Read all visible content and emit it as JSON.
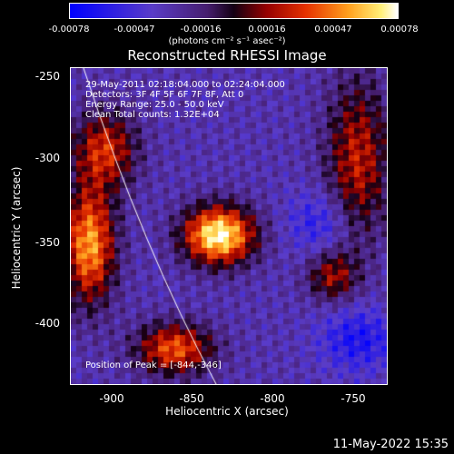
{
  "colorbar": {
    "ticks": [
      "-0.00078",
      "-0.00047",
      "-0.00016",
      "0.00016",
      "0.00047",
      "0.00078"
    ],
    "units": "(photons cm⁻² s⁻¹ asec⁻²)"
  },
  "title": "Reconstructed RHESSI Image",
  "info": {
    "time": "29-May-2011 02:18:04.000 to 02:24:04.000",
    "detectors": "Detectors: 3F 4F 5F 6F 7F 8F, Att 0",
    "energy": "Energy Range: 25.0 - 50.0 keV",
    "clean": "Clean     Total counts: 1.32E+04"
  },
  "peak": "Position of Peak = [-844,-346]",
  "axes": {
    "xlabel": "Heliocentric X (arcsec)",
    "ylabel": "Heliocentric Y (arcsec)",
    "xticks": [
      "-900",
      "-850",
      "-800",
      "-750"
    ],
    "yticks": [
      "-250",
      "-300",
      "-350",
      "-400"
    ]
  },
  "date": "11-May-2022 15:35",
  "colors": {
    "background": "#000000",
    "limb_line": "#ffffff"
  }
}
